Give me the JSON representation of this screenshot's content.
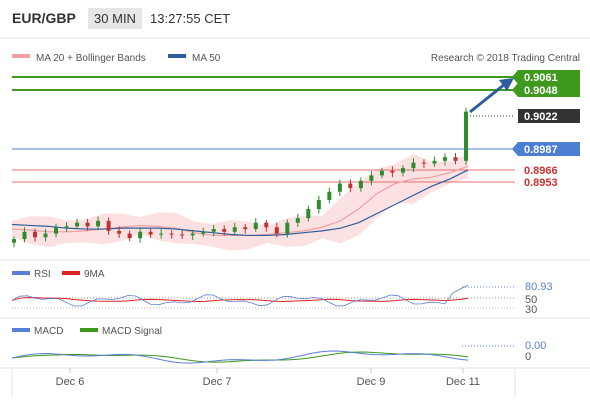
{
  "header": {
    "pair": "EUR/GBP",
    "interval": "30 MIN",
    "time": "13:27:55 CET"
  },
  "legend": {
    "ma20_bb": "MA 20 + Bollinger Bands",
    "ma50": "MA 50",
    "credit": "Research © 2018 Trading Central"
  },
  "colors": {
    "resistance": "#3d9a1e",
    "support": "#e07070",
    "pivot": "#4a7fd4",
    "ma50": "#2c5d9f",
    "ma20": "#f0a0a0",
    "band_fill": "#fadcdc",
    "candle_up": "#2e8b2e",
    "candle_down": "#c03030",
    "arrow": "#2c5d9f",
    "rsi": "#5b7fd6",
    "rsi_ma": "#dd2222",
    "macd": "#5b7fd6",
    "macd_signal": "#3a9a1a"
  },
  "price_levels": [
    {
      "value": "0.9061",
      "kind": "resistance"
    },
    {
      "value": "0.9048",
      "kind": "resistance"
    },
    {
      "value": "0.9022",
      "kind": "current"
    },
    {
      "value": "0.8987",
      "kind": "pivot"
    },
    {
      "value": "0.8966",
      "kind": "support"
    },
    {
      "value": "0.8953",
      "kind": "support"
    }
  ],
  "rsi_panel": {
    "legend_rsi": "RSI",
    "legend_ma": "9MA",
    "value": "80.93",
    "ticks": [
      "50",
      "30"
    ]
  },
  "macd_panel": {
    "legend_macd": "MACD",
    "legend_signal": "MACD Signal",
    "value": "0.00",
    "ticks": [
      "0"
    ]
  },
  "chart_data": {
    "type": "candlestick",
    "x_ticks": [
      "Dec 6",
      "Dec 7",
      "Dec 9",
      "Dec 11"
    ],
    "y_range": [
      0.887,
      0.907
    ],
    "series": [
      {
        "name": "MA 20 + Bollinger Bands",
        "values": [
          0.8893,
          0.8892,
          0.889,
          0.889,
          0.8891,
          0.8893,
          0.8895,
          0.8897,
          0.8896,
          0.8894,
          0.8889,
          0.8886,
          0.8886,
          0.8886,
          0.8887,
          0.8889,
          0.8891,
          0.8895,
          0.8902,
          0.8915,
          0.8932,
          0.8943,
          0.8948,
          0.895,
          0.8955,
          0.8962
        ]
      },
      {
        "name": "MA 50",
        "values": [
          0.8898,
          0.8897,
          0.8896,
          0.8894,
          0.8893,
          0.8893,
          0.8894,
          0.8894,
          0.8894,
          0.8893,
          0.8891,
          0.8889,
          0.8887,
          0.8886,
          0.8886,
          0.8887,
          0.8889,
          0.8891,
          0.8894,
          0.89,
          0.891,
          0.892,
          0.893,
          0.894,
          0.8948,
          0.8958
        ]
      }
    ],
    "candles_close": [
      0.8882,
      0.889,
      0.8884,
      0.8888,
      0.8895,
      0.8896,
      0.89,
      0.8896,
      0.8902,
      0.8891,
      0.8888,
      0.8883,
      0.889,
      0.8887,
      0.8888,
      0.8887,
      0.8886,
      0.8888,
      0.889,
      0.8893,
      0.889,
      0.8895,
      0.8893,
      0.89,
      0.8895,
      0.8888,
      0.89,
      0.8905,
      0.8915,
      0.8925,
      0.8934,
      0.8943,
      0.8938,
      0.8946,
      0.8952,
      0.8957,
      0.8955,
      0.896,
      0.8966,
      0.8965,
      0.8968,
      0.8972,
      0.8968,
      0.9022
    ]
  }
}
